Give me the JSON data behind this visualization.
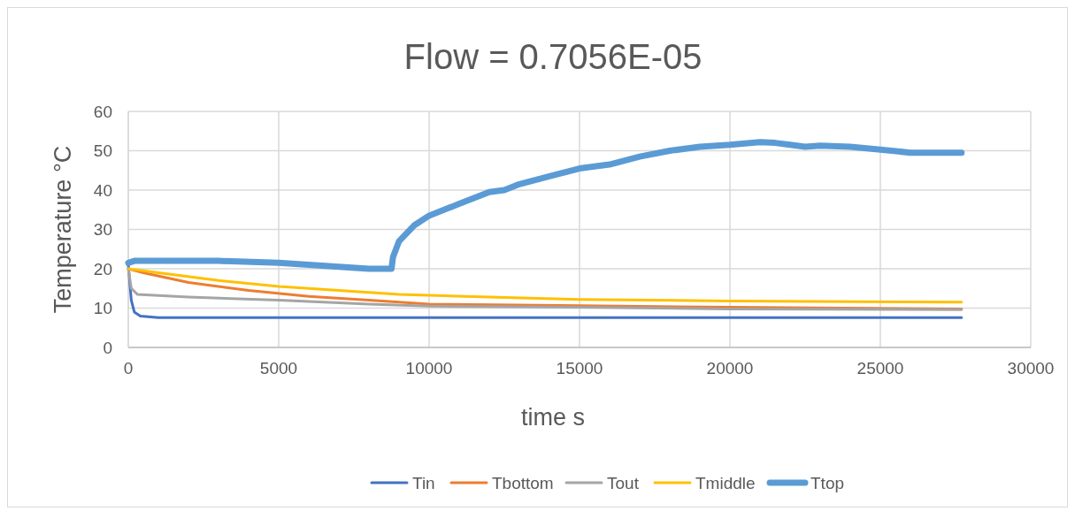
{
  "chart_data": {
    "type": "line",
    "title": "Flow = 0.7056E-05",
    "xlabel": "time s",
    "ylabel": "Temperature °C",
    "xlim": [
      0,
      30000
    ],
    "xticks": [
      0,
      5000,
      10000,
      15000,
      20000,
      25000,
      30000
    ],
    "ylim": [
      0,
      60
    ],
    "yticks": [
      0,
      10,
      20,
      30,
      40,
      50,
      60
    ],
    "grid": true,
    "legend": "bottom",
    "marker": "none",
    "line_style": "solid",
    "series": [
      {
        "name": "Tin",
        "color": "#4472c4",
        "x": [
          0,
          100,
          200,
          400,
          1000,
          5000,
          10000,
          15000,
          20000,
          25000,
          27700
        ],
        "values": [
          21,
          12,
          9,
          8,
          7.6,
          7.6,
          7.6,
          7.6,
          7.6,
          7.6,
          7.6
        ]
      },
      {
        "name": "Tbottom",
        "color": "#ed7d31",
        "x": [
          0,
          500,
          2000,
          4000,
          6000,
          8000,
          10000,
          15000,
          20000,
          27700
        ],
        "values": [
          20,
          19,
          16.5,
          14.5,
          13,
          12,
          11,
          10.6,
          10.2,
          9.8
        ]
      },
      {
        "name": "Tout",
        "color": "#a5a5a5",
        "x": [
          0,
          100,
          300,
          2000,
          5000,
          8000,
          10000,
          15000,
          20000,
          27700
        ],
        "values": [
          20,
          15,
          13.5,
          12.8,
          12,
          11,
          10.5,
          10.2,
          9.8,
          9.6
        ]
      },
      {
        "name": "Tmiddle",
        "color": "#ffc000",
        "x": [
          0,
          1000,
          3000,
          5000,
          7000,
          9000,
          12000,
          15000,
          20000,
          27700
        ],
        "values": [
          20,
          19,
          17,
          15.5,
          14.5,
          13.5,
          12.8,
          12.2,
          11.8,
          11.5
        ]
      },
      {
        "name": "Ttop",
        "color": "#5b9bd5",
        "x": [
          0,
          200,
          3000,
          5000,
          7000,
          8000,
          8750,
          8800,
          9000,
          9500,
          10000,
          11000,
          12000,
          12500,
          13000,
          14000,
          15000,
          16000,
          17000,
          18000,
          19000,
          20000,
          21000,
          21500,
          22000,
          22500,
          23000,
          24000,
          25000,
          26000,
          27000,
          27700
        ],
        "values": [
          21.5,
          22,
          22,
          21.5,
          20.5,
          20,
          20,
          23,
          27,
          31,
          33.5,
          36.5,
          39.5,
          40,
          41.5,
          43.5,
          45.5,
          46.5,
          48.5,
          50,
          51,
          51.5,
          52.2,
          52,
          51.5,
          51,
          51.3,
          51,
          50.3,
          49.5,
          49.5,
          49.5
        ]
      }
    ]
  }
}
